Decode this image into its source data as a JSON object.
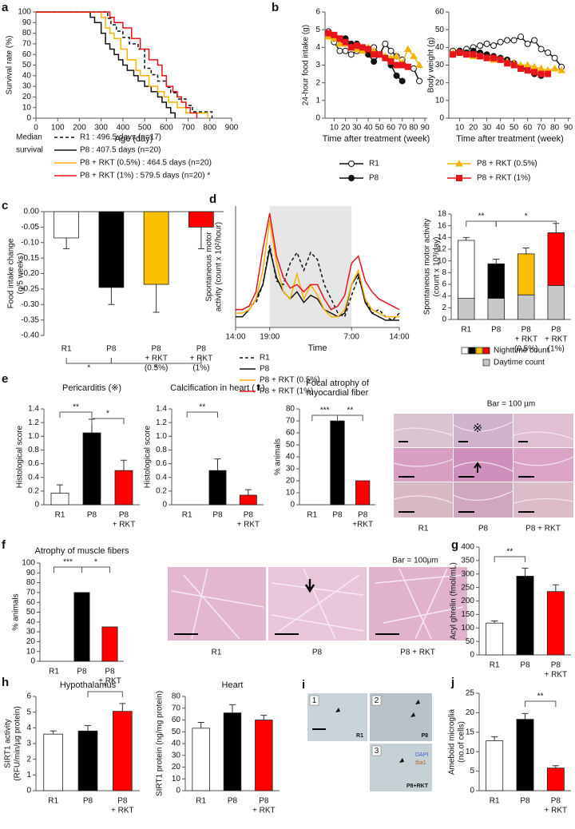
{
  "chart_data": [
    {
      "type": "line",
      "panel": "a",
      "step": true,
      "ylabel": "Survival rate (%)",
      "xlabel": "Age (day)",
      "xlim": [
        0,
        900
      ],
      "xticks": [
        0,
        100,
        200,
        300,
        400,
        500,
        600,
        700,
        800,
        900
      ],
      "ylim": [
        0,
        100
      ],
      "yticks": [
        0,
        10,
        20,
        30,
        40,
        50,
        60,
        70,
        80,
        90,
        100
      ],
      "legend_title": [
        "Median",
        "survival"
      ],
      "series": [
        {
          "name": "R1 : 496.5 days (n=17)",
          "color": "#111111",
          "dash": true,
          "x": [
            0,
            330,
            345,
            370,
            400,
            430,
            470,
            500,
            530,
            560,
            600,
            620,
            650,
            690,
            720,
            810
          ],
          "values": [
            100,
            94,
            88,
            82,
            76,
            70,
            65,
            47,
            41,
            35,
            29,
            24,
            18,
            12,
            6,
            0
          ]
        },
        {
          "name": "P8 : 407.5 days (n=20)",
          "color": "#111111",
          "x": [
            0,
            250,
            270,
            300,
            320,
            340,
            360,
            380,
            400,
            420,
            450,
            470,
            500,
            530,
            560,
            580,
            600,
            620,
            640
          ],
          "values": [
            100,
            95,
            90,
            80,
            70,
            65,
            60,
            55,
            50,
            45,
            40,
            35,
            30,
            25,
            20,
            15,
            10,
            5,
            0
          ]
        },
        {
          "name": "P8 + RKT (0.5%) : 464.5 days (n=20)",
          "color": "#f5b400",
          "x": [
            0,
            300,
            320,
            340,
            360,
            390,
            420,
            460,
            480,
            520,
            560,
            590,
            610,
            650,
            690,
            790
          ],
          "values": [
            100,
            95,
            85,
            80,
            75,
            65,
            55,
            45,
            40,
            30,
            25,
            20,
            15,
            10,
            5,
            0
          ]
        },
        {
          "name": "P8 + RKT (1%) : 579.5 days (n=20) *",
          "color": "#e8141c",
          "x": [
            0,
            340,
            360,
            400,
            440,
            480,
            520,
            560,
            580,
            600,
            630,
            650,
            670,
            690,
            710,
            740
          ],
          "values": [
            100,
            95,
            90,
            85,
            75,
            65,
            55,
            50,
            40,
            30,
            25,
            20,
            15,
            10,
            5,
            0
          ]
        }
      ]
    },
    {
      "type": "line",
      "panel": "b",
      "ylabel": "24-hour food intake (g)",
      "xlabel": "Time after treatment (week)",
      "xlim": [
        2,
        92
      ],
      "xticks": [
        10,
        20,
        30,
        40,
        50,
        60,
        70,
        80,
        90
      ],
      "ylim": [
        0,
        6
      ],
      "yticks": [
        0,
        1,
        2,
        3,
        4,
        5,
        6
      ],
      "x": [
        5,
        10,
        15,
        20,
        25,
        30,
        35,
        40,
        45,
        50,
        55,
        60,
        65,
        70,
        75,
        80,
        85
      ],
      "series": [
        {
          "name": "R1",
          "color": "#111111",
          "marker": "circle-open",
          "values": [
            4.9,
            4.3,
            3.8,
            3.8,
            3.6,
            3.8,
            3.9,
            3.7,
            4.0,
            3.6,
            4.2,
            3.8,
            3.5,
            3.3,
            2.9,
            2.8,
            2.1
          ]
        },
        {
          "name": "P8",
          "color": "#111111",
          "marker": "circle",
          "values": [
            4.8,
            4.5,
            4.4,
            4.5,
            4.2,
            4.2,
            4.0,
            3.6,
            3.2,
            3.6,
            3.4,
            3.0,
            2.4,
            2.1,
            null,
            null,
            null
          ]
        },
        {
          "name": "P8 + RKT (0.5%)",
          "color": "#f5b400",
          "marker": "triangle",
          "values": [
            4.6,
            4.5,
            4.2,
            4.2,
            4.0,
            3.9,
            3.8,
            4.0,
            3.8,
            3.6,
            3.5,
            3.4,
            3.5,
            3.1,
            3.9,
            3.5,
            3.0
          ]
        },
        {
          "name": "P8 + RKT (1%)",
          "color": "#e8141c",
          "marker": "square",
          "values": [
            4.8,
            4.7,
            4.5,
            4.3,
            4.0,
            4.1,
            4.0,
            3.9,
            3.6,
            3.6,
            3.4,
            3.2,
            3.0,
            3.0,
            2.9,
            null,
            null
          ]
        }
      ]
    },
    {
      "type": "line",
      "ylabel": "Body weight (g)",
      "xlabel": "Time after treatment (week)",
      "xlim": [
        2,
        92
      ],
      "xticks": [
        10,
        20,
        30,
        40,
        50,
        60,
        70,
        80,
        90
      ],
      "ylim": [
        0,
        60
      ],
      "yticks": [
        0,
        10,
        20,
        30,
        40,
        50,
        60
      ],
      "x": [
        5,
        10,
        15,
        20,
        25,
        30,
        35,
        40,
        45,
        50,
        55,
        60,
        65,
        70,
        75,
        80,
        85
      ],
      "series": [
        {
          "color": "#111111",
          "marker": "circle-open",
          "values": [
            38,
            38,
            39,
            40,
            41,
            42,
            41,
            43,
            44,
            44,
            46,
            42,
            44,
            39,
            37,
            34,
            29
          ]
        },
        {
          "color": "#111111",
          "marker": "circle",
          "values": [
            36,
            38,
            37,
            38,
            37,
            36,
            35,
            34,
            33,
            31,
            29,
            27,
            25,
            24,
            null,
            null,
            null
          ]
        },
        {
          "color": "#f5b400",
          "marker": "triangle",
          "values": [
            37,
            37,
            36,
            35,
            35,
            34,
            33,
            33,
            32,
            31,
            30,
            30,
            29,
            28,
            27,
            28,
            27
          ]
        },
        {
          "color": "#e8141c",
          "marker": "square",
          "values": [
            36,
            37,
            36,
            36,
            35,
            34,
            34,
            33,
            31,
            30,
            28,
            27,
            26,
            25,
            25,
            null,
            null
          ]
        }
      ]
    },
    {
      "type": "bar",
      "panel": "c",
      "ylabel": [
        "Food intake change",
        "(g/5 weeks)"
      ],
      "categories": [
        "R1",
        "P8",
        [
          "P8",
          "+ RKT",
          "(0.5%)"
        ],
        [
          "P8",
          "+ RKT",
          "(1%)"
        ]
      ],
      "values": [
        -0.085,
        -0.245,
        -0.235,
        -0.05
      ],
      "errors": [
        0.035,
        0.055,
        0.09,
        0.07
      ],
      "colors": [
        "#ffffff",
        "#000000",
        "#f9c000",
        "#ff0000"
      ],
      "ylim": [
        -0.4,
        0
      ],
      "yticks": [
        {
          "value": 0,
          "label": "0.00"
        },
        -0.05,
        {
          "value": -0.1,
          "label": "-0.10"
        },
        -0.15,
        {
          "value": -0.2,
          "label": "-0.20"
        },
        -0.25,
        {
          "value": -0.3,
          "label": "-0.30"
        },
        -0.35,
        {
          "value": -0.4,
          "label": "-0.40"
        }
      ],
      "annotations": [
        "*",
        "*"
      ]
    },
    {
      "type": "line",
      "panel": "d",
      "ylabel": [
        "Spontaneous motor",
        "activity (count x 10²/hour)"
      ],
      "xlabel": "Time",
      "xlim": [
        0,
        24
      ],
      "xticks": [
        {
          "value": 0,
          "label": "14:00"
        },
        {
          "value": 5,
          "label": "19:00"
        },
        {
          "value": 17,
          "label": "7:00"
        },
        {
          "value": 24,
          "label": "14:00"
        }
      ],
      "ylim": [
        0,
        17
      ],
      "span": [
        5,
        17
      ],
      "x": [
        0,
        1,
        2,
        3,
        4,
        5,
        6,
        7,
        8,
        9,
        10,
        11,
        12,
        13,
        14,
        15,
        16,
        17,
        18,
        19,
        20,
        21,
        22,
        23,
        24
      ],
      "series": [
        {
          "name": "R1",
          "color": "#111111",
          "dash": true,
          "values": [
            2.5,
            2.5,
            3,
            3.5,
            6,
            11.5,
            6.5,
            6,
            9,
            10.5,
            8,
            10.5,
            9.5,
            6,
            4,
            2,
            1.5,
            4.5,
            7,
            4,
            2,
            2.5,
            1.5,
            1,
            2
          ]
        },
        {
          "name": "P8",
          "color": "#111111",
          "values": [
            1.5,
            1.5,
            2.5,
            4,
            6,
            11,
            7,
            5,
            4,
            5,
            3.5,
            4.5,
            4,
            2.5,
            2,
            1.5,
            2,
            6,
            7.5,
            3.5,
            2,
            1.5,
            1,
            1,
            1
          ]
        },
        {
          "name": "P8 + RKT (0.5%)",
          "color": "#f5b400",
          "values": [
            2,
            2,
            2.5,
            4,
            8,
            15,
            9,
            5,
            4,
            7.5,
            4,
            6,
            4.5,
            2.5,
            1.5,
            1.5,
            2.5,
            6,
            8,
            4,
            2.5,
            2,
            1.5,
            1.5,
            1.5
          ]
        },
        {
          "name": "P8 + RKT (1%)",
          "color": "#e8141c",
          "values": [
            2.5,
            2.5,
            3,
            5,
            11,
            16,
            10,
            7,
            5.5,
            6,
            5,
            6,
            6,
            4,
            2.5,
            3,
            4.5,
            9,
            10,
            6.5,
            5,
            4,
            3.5,
            3,
            2.5
          ]
        }
      ]
    },
    {
      "type": "bar",
      "stacked": true,
      "ylabel": [
        "Spontaneous motor activity",
        "(count x 10³/day)"
      ],
      "categories": [
        "R1",
        "P8",
        [
          "P8",
          "+ RKT",
          "(0.5%)"
        ],
        [
          "P8",
          "+ RKT",
          "(1%)"
        ]
      ],
      "ylim": [
        0,
        18
      ],
      "yticks": [
        0,
        2,
        4,
        6,
        8,
        10,
        12,
        14,
        16,
        18
      ],
      "series": [
        {
          "name": "Daytime count",
          "color": "#c8c8c8",
          "values": [
            3.6,
            3.6,
            4.2,
            5.8
          ]
        },
        {
          "name": "Nighttime count",
          "colors": [
            "#ffffff",
            "#000000",
            "#f9c000",
            "#ff0000"
          ],
          "values": [
            9.9,
            5.9,
            7.0,
            9.0
          ],
          "errors": [
            0.5,
            0.8,
            1.0,
            1.6
          ]
        }
      ],
      "annotations": [
        "**",
        "*"
      ]
    },
    {
      "type": "bar",
      "panel": "e",
      "title": "Pericarditis (※)",
      "ylabel": "Histological score",
      "categories": [
        "R1",
        "P8",
        [
          "P8",
          "+ RKT"
        ]
      ],
      "values": [
        0.17,
        1.05,
        0.5
      ],
      "errors": [
        0.12,
        0.2,
        0.15
      ],
      "colors": [
        "#ffffff",
        "#000000",
        "#ff0000"
      ],
      "ylim": [
        0,
        1.4
      ],
      "yticks": [
        0,
        0.2,
        0.4,
        0.6,
        0.8,
        {
          "value": 1,
          "label": "1.0"
        },
        1.2,
        1.4
      ],
      "annotations": [
        "**",
        "*"
      ]
    },
    {
      "type": "bar",
      "title": "Calcification in heart (⬆)",
      "ylabel": "Histological score",
      "categories": [
        "R1",
        "P8",
        [
          "P8",
          "+ RKT"
        ]
      ],
      "values": [
        0,
        0.5,
        0.14
      ],
      "errors": [
        0,
        0.17,
        0.08
      ],
      "colors": [
        "#ffffff",
        "#000000",
        "#ff0000"
      ],
      "ylim": [
        0,
        1.4
      ],
      "yticks": [
        0,
        0.2,
        0.4,
        0.6,
        0.8,
        {
          "value": 1,
          "label": "1.0"
        },
        1.2,
        1.4
      ],
      "annotations": [
        "**"
      ]
    },
    {
      "type": "bar",
      "title": [
        "Focal atrophy of",
        "myocardial fiber"
      ],
      "ylabel": "% animals",
      "categories": [
        "R1",
        "P8",
        [
          "P8",
          "+RKT"
        ]
      ],
      "values": [
        0,
        70,
        20
      ],
      "colors": [
        "#ffffff",
        "#000000",
        "#ff0000"
      ],
      "ylim": [
        0,
        80
      ],
      "yticks": [
        0,
        10,
        20,
        30,
        40,
        50,
        60,
        70,
        80
      ],
      "annotations": [
        "***",
        "**"
      ]
    },
    {
      "type": "bar",
      "panel": "f",
      "title": "Atrophy of muscle fibers",
      "ylabel": "% animals",
      "categories": [
        "R1",
        "P8",
        [
          "P8",
          "+ RKT"
        ]
      ],
      "values": [
        0,
        70,
        35
      ],
      "colors": [
        "#ffffff",
        "#000000",
        "#ff0000"
      ],
      "ylim": [
        0,
        100
      ],
      "yticks": [
        0,
        10,
        20,
        30,
        40,
        50,
        60,
        70,
        80,
        90,
        100
      ],
      "annotations": [
        "***",
        "*"
      ]
    },
    {
      "type": "bar",
      "panel": "g",
      "ylabel": "Acyl ghrelin (fmol/mL)",
      "categories": [
        "R1",
        "P8",
        [
          "P8",
          "+ RKT"
        ]
      ],
      "values": [
        118,
        292,
        235
      ],
      "errors": [
        8,
        30,
        25
      ],
      "colors": [
        "#ffffff",
        "#000000",
        "#ff0000"
      ],
      "ylim": [
        0,
        400
      ],
      "yticks": [
        0,
        50,
        100,
        150,
        200,
        250,
        300,
        350,
        400
      ],
      "annotations": [
        "**"
      ]
    },
    {
      "type": "bar",
      "panel": "h",
      "title": "Hypothalamus",
      "ylabel": [
        "SIRT1 activity",
        "(RFU/min/µg protein)"
      ],
      "categories": [
        "R1",
        "P8",
        [
          "P8",
          "+ RKT"
        ]
      ],
      "values": [
        3.6,
        3.8,
        5.05
      ],
      "errors": [
        0.2,
        0.35,
        0.5
      ],
      "colors": [
        "#ffffff",
        "#000000",
        "#ff0000"
      ],
      "ylim": [
        0,
        6
      ],
      "yticks": [
        0,
        1,
        2,
        3,
        4,
        5,
        6
      ],
      "annotations": [
        "*"
      ]
    },
    {
      "type": "bar",
      "title": "Heart",
      "ylabel": "SIRT1 protein (ng/mg protein)",
      "categories": [
        "R1",
        "P8",
        [
          "P8",
          "+ RKT"
        ]
      ],
      "values": [
        53,
        66,
        60
      ],
      "errors": [
        5,
        7,
        4
      ],
      "colors": [
        "#ffffff",
        "#000000",
        "#ff0000"
      ],
      "ylim": [
        0,
        80
      ],
      "yticks": [
        0,
        10,
        20,
        30,
        40,
        50,
        60,
        70,
        80
      ]
    },
    {
      "type": "bar",
      "panel": "j",
      "ylabel": [
        "Ameboid microglia",
        "(no.of cells)"
      ],
      "categories": [
        "R1",
        "P8",
        [
          "P8",
          "+ RKT"
        ]
      ],
      "values": [
        12.8,
        18.3,
        5.8
      ],
      "errors": [
        1,
        1.5,
        0.6
      ],
      "colors": [
        "#ffffff",
        "#000000",
        "#ff0000"
      ],
      "ylim": [
        0,
        25
      ],
      "yticks": [
        0,
        5,
        10,
        15,
        20,
        25
      ],
      "annotations": [
        "**"
      ]
    }
  ],
  "figure": {
    "e_images": {
      "scale": "Bar = 100 µm",
      "symbol": "※",
      "columns": [
        "R1",
        "P8",
        "P8 + RKT"
      ]
    },
    "f_images": {
      "scale": "Bar = 100μm",
      "columns": [
        "R1",
        "P8",
        "P8 + RKT"
      ]
    },
    "i_images": {
      "panel": "i",
      "numbers": [
        "1",
        "2",
        "3"
      ],
      "groups": [
        "R1",
        "P8",
        "P8+RKT"
      ],
      "stains": [
        "DAPI",
        "Iba1"
      ]
    }
  }
}
